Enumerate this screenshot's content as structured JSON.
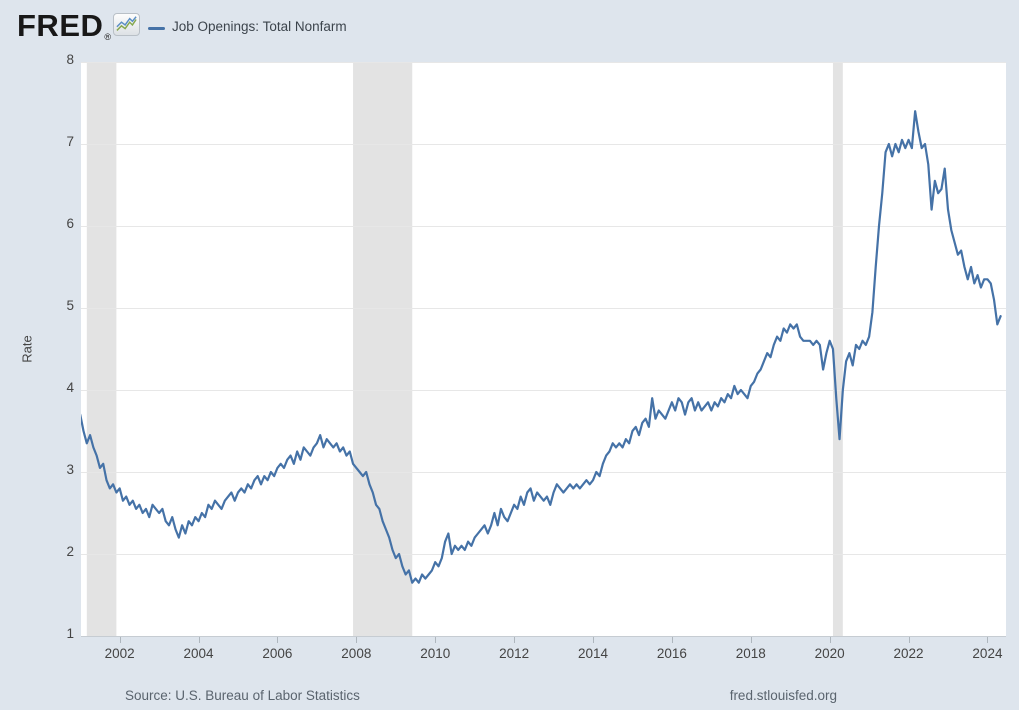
{
  "header": {
    "logo": "FRED",
    "registered": "®",
    "legend_label": "Job Openings: Total Nonfarm",
    "legend_color": "#4572a7"
  },
  "footer": {
    "source": "Source: U.S. Bureau of Labor Statistics",
    "site": "fred.stlouisfed.org"
  },
  "chart_data": {
    "type": "line",
    "title": "Job Openings: Total Nonfarm",
    "ylabel": "Rate",
    "xlabel": "",
    "ylim": [
      1,
      8
    ],
    "xlim": [
      2001.02,
      2024.47
    ],
    "yticks": [
      1,
      2,
      3,
      4,
      5,
      6,
      7,
      8
    ],
    "xticks": [
      2002,
      2004,
      2006,
      2008,
      2010,
      2012,
      2014,
      2016,
      2018,
      2020,
      2022,
      2024
    ],
    "grid": "horizontal-only",
    "grid_color": "#e7e7e7",
    "legend_position": "top-left-header",
    "line_color": "#4572a7",
    "recession_shading_color": "#e3e3e3",
    "recessions": [
      [
        2001.167,
        2001.917
      ],
      [
        2007.917,
        2009.417
      ],
      [
        2020.083,
        2020.333
      ]
    ],
    "series": [
      {
        "name": "Job Openings: Total Nonfarm",
        "units": "Rate",
        "frequency": "monthly",
        "start": "2000-12",
        "end": "2024-05",
        "values": [
          3.8,
          3.7,
          3.5,
          3.35,
          3.45,
          3.3,
          3.2,
          3.05,
          3.1,
          2.9,
          2.8,
          2.85,
          2.75,
          2.8,
          2.65,
          2.7,
          2.6,
          2.65,
          2.55,
          2.6,
          2.5,
          2.55,
          2.45,
          2.6,
          2.55,
          2.5,
          2.55,
          2.4,
          2.35,
          2.45,
          2.3,
          2.2,
          2.35,
          2.25,
          2.4,
          2.35,
          2.45,
          2.4,
          2.5,
          2.45,
          2.6,
          2.55,
          2.65,
          2.6,
          2.55,
          2.65,
          2.7,
          2.75,
          2.65,
          2.75,
          2.8,
          2.75,
          2.85,
          2.8,
          2.9,
          2.95,
          2.85,
          2.95,
          2.9,
          3.0,
          2.95,
          3.05,
          3.1,
          3.05,
          3.15,
          3.2,
          3.1,
          3.25,
          3.15,
          3.3,
          3.25,
          3.2,
          3.3,
          3.35,
          3.45,
          3.3,
          3.4,
          3.35,
          3.3,
          3.35,
          3.25,
          3.3,
          3.2,
          3.25,
          3.1,
          3.05,
          3.0,
          2.95,
          3.0,
          2.85,
          2.75,
          2.6,
          2.55,
          2.4,
          2.3,
          2.2,
          2.05,
          1.95,
          2.0,
          1.85,
          1.75,
          1.8,
          1.65,
          1.7,
          1.65,
          1.75,
          1.7,
          1.75,
          1.8,
          1.9,
          1.85,
          1.95,
          2.15,
          2.25,
          2.0,
          2.1,
          2.05,
          2.1,
          2.05,
          2.15,
          2.1,
          2.2,
          2.25,
          2.3,
          2.35,
          2.25,
          2.35,
          2.5,
          2.35,
          2.55,
          2.45,
          2.4,
          2.5,
          2.6,
          2.55,
          2.7,
          2.6,
          2.75,
          2.8,
          2.65,
          2.75,
          2.7,
          2.65,
          2.7,
          2.6,
          2.75,
          2.85,
          2.8,
          2.75,
          2.8,
          2.85,
          2.8,
          2.85,
          2.8,
          2.85,
          2.9,
          2.85,
          2.9,
          3.0,
          2.95,
          3.1,
          3.2,
          3.25,
          3.35,
          3.3,
          3.35,
          3.3,
          3.4,
          3.35,
          3.5,
          3.55,
          3.45,
          3.6,
          3.65,
          3.55,
          3.9,
          3.65,
          3.75,
          3.7,
          3.65,
          3.75,
          3.85,
          3.75,
          3.9,
          3.85,
          3.7,
          3.85,
          3.9,
          3.75,
          3.85,
          3.75,
          3.8,
          3.85,
          3.75,
          3.85,
          3.8,
          3.9,
          3.85,
          3.95,
          3.9,
          4.05,
          3.95,
          4.0,
          3.95,
          3.9,
          4.05,
          4.1,
          4.2,
          4.25,
          4.35,
          4.45,
          4.4,
          4.55,
          4.65,
          4.6,
          4.75,
          4.7,
          4.8,
          4.75,
          4.8,
          4.65,
          4.6,
          4.6,
          4.6,
          4.55,
          4.6,
          4.55,
          4.25,
          4.45,
          4.6,
          4.5,
          3.9,
          3.4,
          4.0,
          4.35,
          4.45,
          4.3,
          4.55,
          4.5,
          4.6,
          4.55,
          4.65,
          4.95,
          5.5,
          6.0,
          6.4,
          6.9,
          7.0,
          6.85,
          7.0,
          6.9,
          7.05,
          6.95,
          7.05,
          6.95,
          7.4,
          7.15,
          6.95,
          7.0,
          6.75,
          6.2,
          6.55,
          6.4,
          6.45,
          6.7,
          6.2,
          5.95,
          5.8,
          5.65,
          5.7,
          5.5,
          5.35,
          5.5,
          5.3,
          5.4,
          5.25,
          5.35,
          5.35,
          5.3,
          5.1,
          4.8,
          4.9
        ]
      }
    ]
  }
}
